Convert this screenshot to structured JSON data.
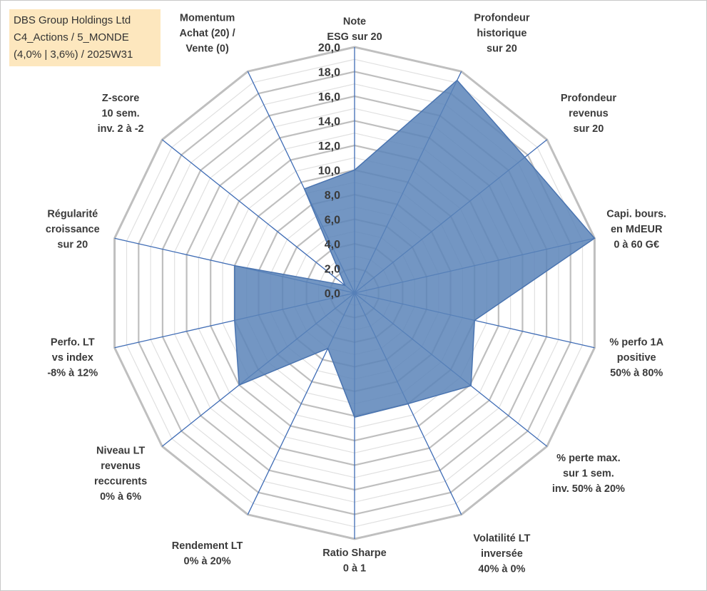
{
  "info_box": {
    "line1": "DBS Group Holdings Ltd",
    "line2": "C4_Actions / 5_MONDE",
    "line3": "(4,0% | 3,6%) / 2025W31"
  },
  "colors": {
    "fill": "#5b84b8",
    "stroke": "#4a74b0",
    "spokes": "#3f6cb5",
    "grid_major": "#bfbfbf",
    "grid_minor": "#e0e0e0",
    "info_bg": "#fde7be"
  },
  "chart_data": {
    "type": "radar",
    "rmin": 0,
    "rmax": 20,
    "grid": true,
    "ticks": [
      "0,0",
      "2,0",
      "4,0",
      "6,0",
      "8,0",
      "10,0",
      "12,0",
      "14,0",
      "16,0",
      "18,0",
      "20,0"
    ],
    "axes": [
      {
        "label": [
          "Note",
          "ESG sur 20"
        ],
        "value": 10.0
      },
      {
        "label": [
          "Profondeur",
          "historique",
          "sur 20"
        ],
        "value": 19.2
      },
      {
        "label": [
          "Profondeur",
          "revenus",
          "sur 20"
        ],
        "value": 17.7
      },
      {
        "label": [
          "Capi. bours.",
          "en MdEUR",
          "0 à 60 G€"
        ],
        "value": 20.0
      },
      {
        "label": [
          "% perfo 1A",
          "positive",
          "50% à 80%"
        ],
        "value": 10.0
      },
      {
        "label": [
          "% perte max.",
          "sur 1 sem.",
          "inv. 50% à 20%"
        ],
        "value": 12.1
      },
      {
        "label": [
          "Volatilité LT",
          "inversée",
          "40% à 0%"
        ],
        "value": 10.0
      },
      {
        "label": [
          "Ratio Sharpe",
          "0 à 1"
        ],
        "value": 10.1
      },
      {
        "label": [
          "Rendement LT",
          "0% à 20%"
        ],
        "value": 5.0
      },
      {
        "label": [
          "Niveau LT",
          "revenus",
          "reccurents",
          "0% à 6%"
        ],
        "value": 12.0
      },
      {
        "label": [
          "Perfo. LT",
          "vs index",
          "-8% à 12%"
        ],
        "value": 10.0
      },
      {
        "label": [
          "Régularité",
          "croissance",
          "sur 20"
        ],
        "value": 10.0
      },
      {
        "label": [
          "Z-score",
          "10 sem.",
          "inv. 2 à -2"
        ],
        "value": 1.0
      },
      {
        "label": [
          "Momentum",
          "Achat (20) /",
          "Vente (0)"
        ],
        "value": 9.4
      }
    ]
  }
}
